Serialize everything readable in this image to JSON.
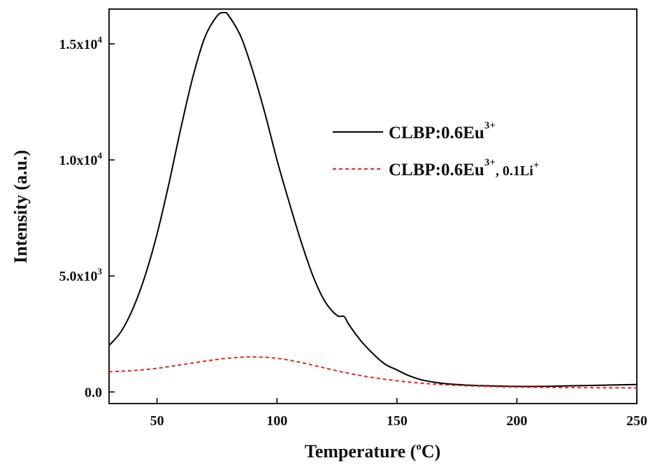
{
  "chart_data": {
    "type": "line",
    "xlabel": {
      "main": "Temperature (",
      "sup": "o",
      "tail": "C)"
    },
    "ylabel": "Intensity (a.u.)",
    "xlim": [
      30,
      250
    ],
    "ylim": [
      -500,
      16500
    ],
    "x_ticks": [
      50,
      100,
      150,
      200,
      250
    ],
    "y_ticks": [
      {
        "value": 0,
        "base": "0.0",
        "exp": ""
      },
      {
        "value": 5000,
        "base": "5.0x10",
        "exp": "3"
      },
      {
        "value": 10000,
        "base": "1.0x10",
        "exp": "4"
      },
      {
        "value": 15000,
        "base": "1.5x10",
        "exp": "4"
      }
    ],
    "grid": false,
    "legend_position": "right",
    "series": [
      {
        "name": "CLBP:0.6Eu3+",
        "legend": {
          "main": "CLBP:0.6Eu",
          "sup": "3+",
          "tail": ""
        },
        "color": "#000000",
        "style": "solid",
        "x": [
          30,
          35,
          40,
          45,
          50,
          55,
          60,
          65,
          70,
          75,
          78,
          80,
          85,
          90,
          95,
          100,
          105,
          110,
          115,
          120,
          125,
          128,
          130,
          135,
          140,
          145,
          150,
          155,
          160,
          165,
          170,
          175,
          180,
          190,
          200,
          210,
          220,
          230,
          240,
          250
        ],
        "y": [
          2000,
          2600,
          3600,
          5000,
          6800,
          9000,
          11400,
          13600,
          15300,
          16200,
          16350,
          16200,
          15300,
          13800,
          12000,
          10000,
          8200,
          6500,
          5000,
          3900,
          3300,
          3250,
          2900,
          2200,
          1650,
          1200,
          950,
          700,
          530,
          430,
          360,
          320,
          290,
          260,
          240,
          240,
          260,
          280,
          300,
          320
        ]
      },
      {
        "name": "CLBP:0.6Eu3+, 0.1Li+",
        "legend": {
          "main": "CLBP:0.6Eu",
          "sup": "3+",
          "tail": ", 0.1Li",
          "sup2": "+"
        },
        "color": "#e8231c",
        "style": "dashed",
        "x": [
          30,
          40,
          50,
          60,
          70,
          80,
          90,
          100,
          110,
          120,
          130,
          140,
          150,
          160,
          170,
          180,
          190,
          200,
          210,
          220,
          230,
          240,
          250
        ],
        "y": [
          870,
          920,
          1020,
          1170,
          1330,
          1460,
          1510,
          1450,
          1270,
          1030,
          800,
          620,
          480,
          380,
          310,
          260,
          230,
          210,
          200,
          190,
          185,
          180,
          175
        ]
      }
    ]
  }
}
